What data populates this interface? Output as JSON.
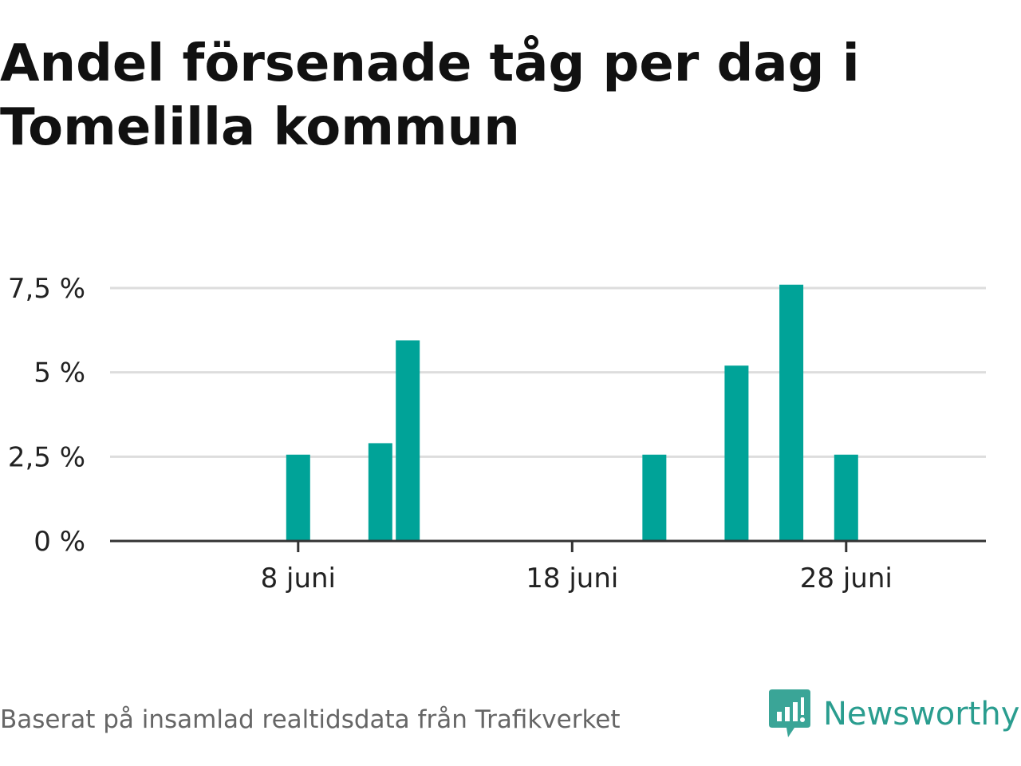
{
  "title": "Andel försenade tåg per dag i Tomelilla kommun",
  "footer": {
    "source": "Baserat på insamlad realtidsdata från Trafikverket",
    "brand": "Newsworthy",
    "brand_icon": "bar-chart-speech-bubble-icon"
  },
  "colors": {
    "bar": "#00a398",
    "grid": "#dddddd",
    "axis": "#333333",
    "brand": "#2a9d8f"
  },
  "chart_data": {
    "type": "bar",
    "title": "Andel försenade tåg per dag i Tomelilla kommun",
    "xlabel": "",
    "ylabel": "",
    "x_unit": "day of June",
    "xlim": [
      0,
      30
    ],
    "ylim": [
      0,
      7.5
    ],
    "y_ticks": [
      0,
      2.5,
      5,
      7.5
    ],
    "y_tick_labels": [
      "0 %",
      "2,5 %",
      "5 %",
      "7,5 %"
    ],
    "x_ticks": [
      8,
      18,
      28
    ],
    "x_tick_labels": [
      "8 juni",
      "18 juni",
      "28 juni"
    ],
    "grid": true,
    "legend": "none",
    "x": [
      8,
      11,
      12,
      21,
      24,
      26,
      28
    ],
    "values": [
      2.56,
      2.9,
      5.95,
      2.56,
      5.2,
      7.6,
      2.56
    ]
  }
}
